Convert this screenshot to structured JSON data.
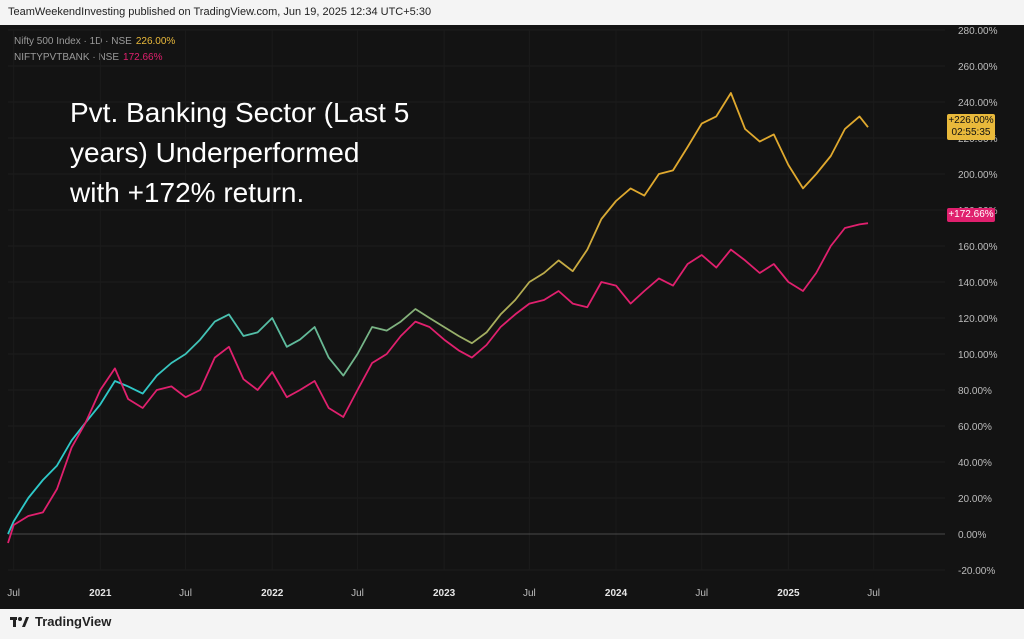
{
  "header": {
    "published": "TeamWeekendInvesting published on TradingView.com, Jun 19, 2025 12:34 UTC+5:30"
  },
  "footer": {
    "brand": "TradingView"
  },
  "legend": [
    {
      "label": "Nifty 500 Index · 1D · NSE",
      "value": "226.00%",
      "color": "#e9b93b"
    },
    {
      "label": "NIFTYPVTBANK · NSE",
      "value": "172.66%",
      "color": "#e0206e"
    }
  ],
  "annotation": {
    "line1": "Pvt. Banking Sector (Last 5",
    "line2": "years) Underperformed",
    "line3": "with +172% return."
  },
  "price_tags": {
    "nifty_value": "+226.00%",
    "nifty_time": "02:55:35",
    "pvtbank_value": "+172.66%"
  },
  "chart_data": {
    "type": "line",
    "y_axis": {
      "unit": "%",
      "ylim": [
        -20,
        280
      ],
      "ticks": [
        "280.00%",
        "260.00%",
        "240.00%",
        "220.00%",
        "200.00%",
        "180.00%",
        "160.00%",
        "140.00%",
        "120.00%",
        "100.00%",
        "80.00%",
        "60.00%",
        "40.00%",
        "20.00%",
        "0.00%",
        "-20.00%"
      ]
    },
    "x_axis": {
      "range": [
        "2020-06-19",
        "2025-06-19"
      ],
      "ticks": [
        {
          "date": "2020-07-01",
          "label": "Jul"
        },
        {
          "date": "2021-01-01",
          "label": "2021"
        },
        {
          "date": "2021-07-01",
          "label": "Jul"
        },
        {
          "date": "2022-01-01",
          "label": "2022"
        },
        {
          "date": "2022-07-01",
          "label": "Jul"
        },
        {
          "date": "2023-01-01",
          "label": "2023"
        },
        {
          "date": "2023-07-01",
          "label": "Jul"
        },
        {
          "date": "2024-01-01",
          "label": "2024"
        },
        {
          "date": "2024-07-01",
          "label": "Jul"
        },
        {
          "date": "2025-01-01",
          "label": "2025"
        },
        {
          "date": "2025-07-01",
          "label": "Jul"
        }
      ]
    },
    "series": [
      {
        "name": "Nifty 500 Index",
        "colors": [
          "#2ec9c9",
          "#7fb27f",
          "#e0a92e"
        ],
        "points": [
          [
            "2020-06-19",
            0
          ],
          [
            "2020-07-01",
            7
          ],
          [
            "2020-08-01",
            20
          ],
          [
            "2020-09-01",
            30
          ],
          [
            "2020-10-01",
            38
          ],
          [
            "2020-11-01",
            52
          ],
          [
            "2020-12-01",
            62
          ],
          [
            "2021-01-01",
            72
          ],
          [
            "2021-02-01",
            85
          ],
          [
            "2021-03-01",
            82
          ],
          [
            "2021-04-01",
            78
          ],
          [
            "2021-05-01",
            88
          ],
          [
            "2021-06-01",
            95
          ],
          [
            "2021-07-01",
            100
          ],
          [
            "2021-08-01",
            108
          ],
          [
            "2021-09-01",
            118
          ],
          [
            "2021-10-01",
            122
          ],
          [
            "2021-11-01",
            110
          ],
          [
            "2021-12-01",
            112
          ],
          [
            "2022-01-01",
            120
          ],
          [
            "2022-02-01",
            104
          ],
          [
            "2022-03-01",
            108
          ],
          [
            "2022-04-01",
            115
          ],
          [
            "2022-05-01",
            98
          ],
          [
            "2022-06-01",
            88
          ],
          [
            "2022-07-01",
            100
          ],
          [
            "2022-08-01",
            115
          ],
          [
            "2022-09-01",
            113
          ],
          [
            "2022-10-01",
            118
          ],
          [
            "2022-11-01",
            125
          ],
          [
            "2022-12-01",
            120
          ],
          [
            "2023-01-01",
            115
          ],
          [
            "2023-02-01",
            110
          ],
          [
            "2023-03-01",
            106
          ],
          [
            "2023-04-01",
            112
          ],
          [
            "2023-05-01",
            122
          ],
          [
            "2023-06-01",
            130
          ],
          [
            "2023-07-01",
            140
          ],
          [
            "2023-08-01",
            145
          ],
          [
            "2023-09-01",
            152
          ],
          [
            "2023-10-01",
            146
          ],
          [
            "2023-11-01",
            158
          ],
          [
            "2023-12-01",
            175
          ],
          [
            "2024-01-01",
            185
          ],
          [
            "2024-02-01",
            192
          ],
          [
            "2024-03-01",
            188
          ],
          [
            "2024-04-01",
            200
          ],
          [
            "2024-05-01",
            202
          ],
          [
            "2024-06-01",
            215
          ],
          [
            "2024-07-01",
            228
          ],
          [
            "2024-08-01",
            232
          ],
          [
            "2024-09-01",
            245
          ],
          [
            "2024-10-01",
            225
          ],
          [
            "2024-11-01",
            218
          ],
          [
            "2024-12-01",
            222
          ],
          [
            "2025-01-01",
            205
          ],
          [
            "2025-02-01",
            192
          ],
          [
            "2025-03-01",
            200
          ],
          [
            "2025-04-01",
            210
          ],
          [
            "2025-05-01",
            225
          ],
          [
            "2025-06-01",
            232
          ],
          [
            "2025-06-19",
            226
          ]
        ]
      },
      {
        "name": "NIFTYPVTBANK",
        "color": "#e0206e",
        "points": [
          [
            "2020-06-19",
            -5
          ],
          [
            "2020-07-01",
            5
          ],
          [
            "2020-08-01",
            10
          ],
          [
            "2020-09-01",
            12
          ],
          [
            "2020-10-01",
            25
          ],
          [
            "2020-11-01",
            48
          ],
          [
            "2020-12-01",
            62
          ],
          [
            "2021-01-01",
            80
          ],
          [
            "2021-02-01",
            92
          ],
          [
            "2021-03-01",
            75
          ],
          [
            "2021-04-01",
            70
          ],
          [
            "2021-05-01",
            80
          ],
          [
            "2021-06-01",
            82
          ],
          [
            "2021-07-01",
            76
          ],
          [
            "2021-08-01",
            80
          ],
          [
            "2021-09-01",
            98
          ],
          [
            "2021-10-01",
            104
          ],
          [
            "2021-11-01",
            86
          ],
          [
            "2021-12-01",
            80
          ],
          [
            "2022-01-01",
            90
          ],
          [
            "2022-02-01",
            76
          ],
          [
            "2022-03-01",
            80
          ],
          [
            "2022-04-01",
            85
          ],
          [
            "2022-05-01",
            70
          ],
          [
            "2022-06-01",
            65
          ],
          [
            "2022-07-01",
            80
          ],
          [
            "2022-08-01",
            95
          ],
          [
            "2022-09-01",
            100
          ],
          [
            "2022-10-01",
            110
          ],
          [
            "2022-11-01",
            118
          ],
          [
            "2022-12-01",
            115
          ],
          [
            "2023-01-01",
            108
          ],
          [
            "2023-02-01",
            102
          ],
          [
            "2023-03-01",
            98
          ],
          [
            "2023-04-01",
            105
          ],
          [
            "2023-05-01",
            115
          ],
          [
            "2023-06-01",
            122
          ],
          [
            "2023-07-01",
            128
          ],
          [
            "2023-08-01",
            130
          ],
          [
            "2023-09-01",
            135
          ],
          [
            "2023-10-01",
            128
          ],
          [
            "2023-11-01",
            126
          ],
          [
            "2023-12-01",
            140
          ],
          [
            "2024-01-01",
            138
          ],
          [
            "2024-02-01",
            128
          ],
          [
            "2024-03-01",
            135
          ],
          [
            "2024-04-01",
            142
          ],
          [
            "2024-05-01",
            138
          ],
          [
            "2024-06-01",
            150
          ],
          [
            "2024-07-01",
            155
          ],
          [
            "2024-08-01",
            148
          ],
          [
            "2024-09-01",
            158
          ],
          [
            "2024-10-01",
            152
          ],
          [
            "2024-11-01",
            145
          ],
          [
            "2024-12-01",
            150
          ],
          [
            "2025-01-01",
            140
          ],
          [
            "2025-02-01",
            135
          ],
          [
            "2025-03-01",
            145
          ],
          [
            "2025-04-01",
            160
          ],
          [
            "2025-05-01",
            170
          ],
          [
            "2025-06-01",
            172
          ],
          [
            "2025-06-19",
            172.66
          ]
        ]
      }
    ]
  }
}
